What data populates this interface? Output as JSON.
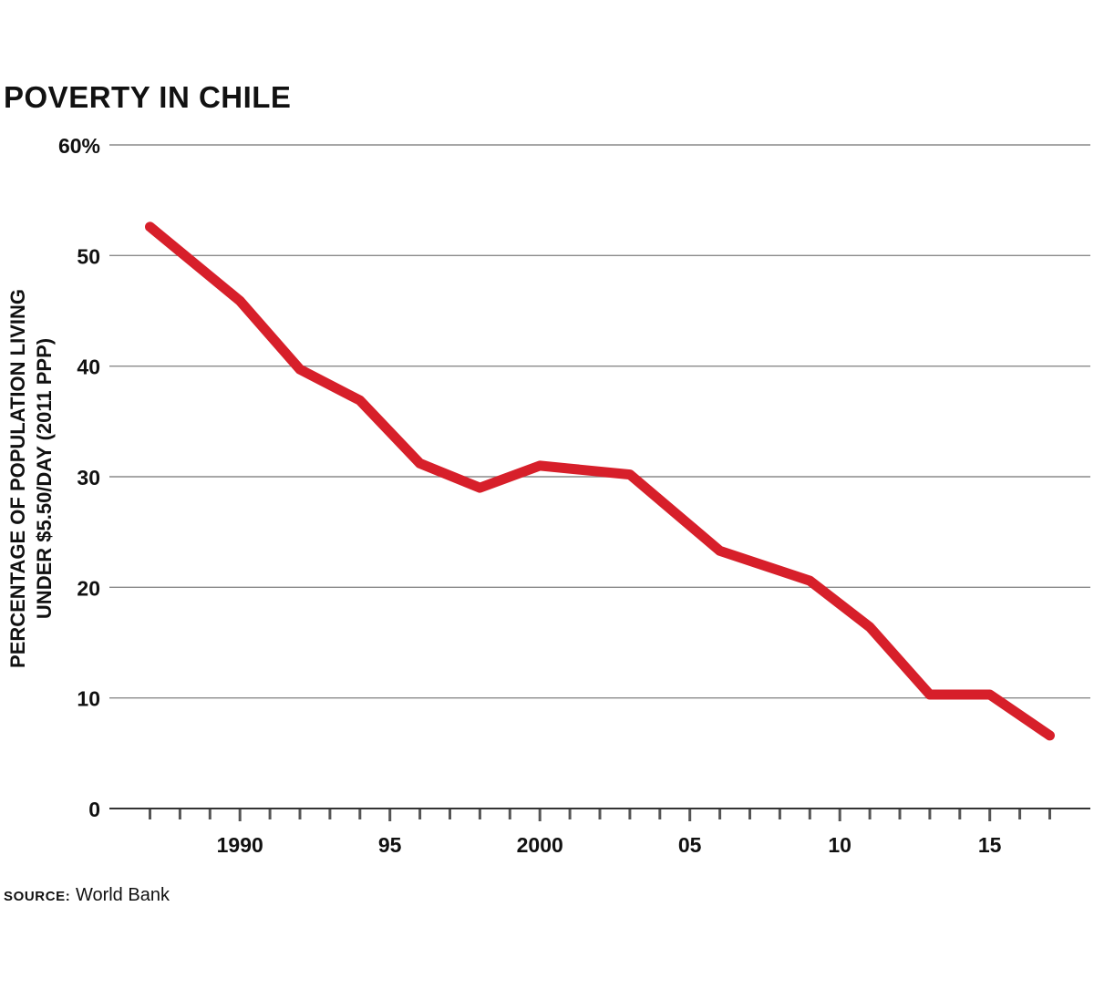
{
  "chart_data": {
    "type": "line",
    "title": "POVERTY IN CHILE",
    "ylabel_lines": [
      "PERCENTAGE OF POPULATION LIVING",
      "UNDER $5.50/DAY (2011 PPP)"
    ],
    "ylim": [
      0,
      60
    ],
    "yticks": [
      0,
      10,
      20,
      30,
      40,
      50,
      60
    ],
    "ytick_labels": [
      "0",
      "10",
      "20",
      "30",
      "40",
      "50",
      "60%"
    ],
    "xlim": [
      1986,
      2018
    ],
    "xticks": [
      1990,
      1995,
      2000,
      2005,
      2010,
      2015
    ],
    "xtick_labels": [
      "1990",
      "95",
      "2000",
      "05",
      "10",
      "15"
    ],
    "grid": true,
    "color": "#d71f2a",
    "series": [
      {
        "x": [
          1987,
          1990,
          1992,
          1994,
          1996,
          1998,
          2000,
          2003,
          2006,
          2009,
          2011,
          2013,
          2015,
          2017
        ],
        "values": [
          52.6,
          45.9,
          39.7,
          36.9,
          31.2,
          29.0,
          31.0,
          30.2,
          23.3,
          20.6,
          16.4,
          10.3,
          10.3,
          6.6
        ]
      }
    ]
  },
  "source": {
    "label": "SOURCE:",
    "text": "World Bank"
  }
}
